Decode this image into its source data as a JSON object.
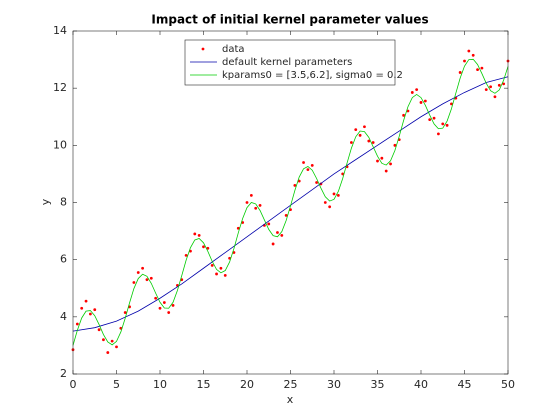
{
  "chart_data": {
    "type": "line",
    "title": "Impact of initial kernel parameter values",
    "xlabel": "x",
    "ylabel": "y",
    "xlim": [
      0,
      50
    ],
    "ylim": [
      2,
      14
    ],
    "xticks": [
      0,
      5,
      10,
      15,
      20,
      25,
      30,
      35,
      40,
      45,
      50
    ],
    "yticks": [
      2,
      4,
      6,
      8,
      10,
      12,
      14
    ],
    "legend": "top",
    "x": [
      0,
      0.5,
      1,
      1.5,
      2,
      2.5,
      3,
      3.5,
      4,
      4.5,
      5,
      5.5,
      6,
      6.5,
      7,
      7.5,
      8,
      8.5,
      9,
      9.5,
      10,
      10.5,
      11,
      11.5,
      12,
      12.5,
      13,
      13.5,
      14,
      14.5,
      15,
      15.5,
      16,
      16.5,
      17,
      17.5,
      18,
      18.5,
      19,
      19.5,
      20,
      20.5,
      21,
      21.5,
      22,
      22.5,
      23,
      23.5,
      24,
      24.5,
      25,
      25.5,
      26,
      26.5,
      27,
      27.5,
      28,
      28.5,
      29,
      29.5,
      30,
      30.5,
      31,
      31.5,
      32,
      32.5,
      33,
      33.5,
      34,
      34.5,
      35,
      35.5,
      36,
      36.5,
      37,
      37.5,
      38,
      38.5,
      39,
      39.5,
      40,
      40.5,
      41,
      41.5,
      42,
      42.5,
      43,
      43.5,
      44,
      44.5,
      45,
      45.5,
      46,
      46.5,
      47,
      47.5,
      48,
      48.5,
      49,
      49.5,
      50
    ],
    "series": [
      {
        "name": "data",
        "color": "#ff0000",
        "style": "points",
        "values": [
          2.85,
          3.75,
          4.3,
          4.55,
          4.1,
          4.25,
          3.55,
          3.2,
          2.75,
          3.15,
          2.95,
          3.6,
          4.15,
          4.35,
          5.2,
          5.55,
          5.7,
          5.3,
          5.35,
          4.65,
          4.3,
          4.5,
          4.15,
          4.4,
          5.1,
          5.3,
          6.15,
          6.3,
          6.9,
          6.85,
          6.45,
          6.4,
          5.8,
          5.5,
          5.7,
          5.45,
          6.05,
          6.25,
          7.1,
          7.3,
          8.0,
          8.25,
          7.8,
          7.9,
          7.2,
          7.25,
          6.55,
          6.95,
          6.85,
          7.55,
          7.75,
          8.6,
          8.75,
          9.4,
          9.15,
          9.3,
          8.7,
          8.65,
          8.0,
          7.85,
          8.3,
          8.25,
          9.0,
          9.25,
          10.1,
          10.55,
          10.35,
          10.65,
          10.15,
          10.1,
          9.45,
          9.55,
          9.1,
          9.35,
          10.0,
          10.2,
          11.05,
          11.2,
          11.85,
          11.95,
          11.5,
          11.55,
          10.9,
          10.95,
          10.4,
          10.75,
          10.7,
          11.45,
          11.65,
          12.55,
          12.95,
          13.3,
          13.15,
          12.65,
          12.7,
          11.95,
          12.05,
          11.7,
          12.1,
          12.15,
          12.95
        ]
      },
      {
        "name": "default kernel parameters",
        "color": "#0000aa",
        "style": "line",
        "x": [
          0,
          2.5,
          5,
          7.5,
          10,
          12.5,
          15,
          17.5,
          20,
          22.5,
          25,
          27.5,
          30,
          32.5,
          35,
          37.5,
          40,
          42.5,
          45,
          47.5,
          50
        ],
        "values": [
          3.5,
          3.62,
          3.85,
          4.2,
          4.65,
          5.15,
          5.7,
          6.25,
          6.8,
          7.35,
          7.9,
          8.45,
          9.0,
          9.5,
          10.0,
          10.5,
          11.0,
          11.45,
          11.85,
          12.2,
          12.4
        ]
      },
      {
        "name": "kparams0 = [3.5,6.2], sigma0 = 0.2",
        "color": "#00cc00",
        "style": "line",
        "values": [
          3.0,
          3.53,
          3.96,
          4.2,
          4.22,
          4.04,
          3.73,
          3.38,
          3.12,
          3.02,
          3.14,
          3.47,
          3.95,
          4.49,
          4.99,
          5.34,
          5.49,
          5.42,
          5.17,
          4.83,
          4.51,
          4.31,
          4.3,
          4.51,
          4.92,
          5.44,
          5.98,
          6.42,
          6.69,
          6.74,
          6.59,
          6.29,
          5.94,
          5.66,
          5.54,
          5.62,
          5.92,
          6.39,
          6.94,
          7.44,
          7.82,
          8.0,
          7.95,
          7.72,
          7.39,
          7.06,
          6.84,
          6.8,
          6.98,
          7.37,
          7.88,
          8.42,
          8.89,
          9.18,
          9.26,
          9.13,
          8.84,
          8.5,
          8.2,
          8.05,
          8.11,
          8.39,
          8.84,
          9.38,
          9.9,
          10.3,
          10.5,
          10.48,
          10.28,
          9.95,
          9.62,
          9.37,
          9.31,
          9.46,
          9.82,
          10.32,
          10.87,
          11.35,
          11.67,
          11.78,
          11.67,
          11.4,
          11.06,
          10.75,
          10.58,
          10.6,
          10.85,
          11.28,
          11.82,
          12.35,
          12.77,
          13.0,
          13.01,
          12.83,
          12.51,
          12.17,
          11.91,
          11.82,
          11.94,
          12.28,
          12.76
        ]
      }
    ]
  }
}
